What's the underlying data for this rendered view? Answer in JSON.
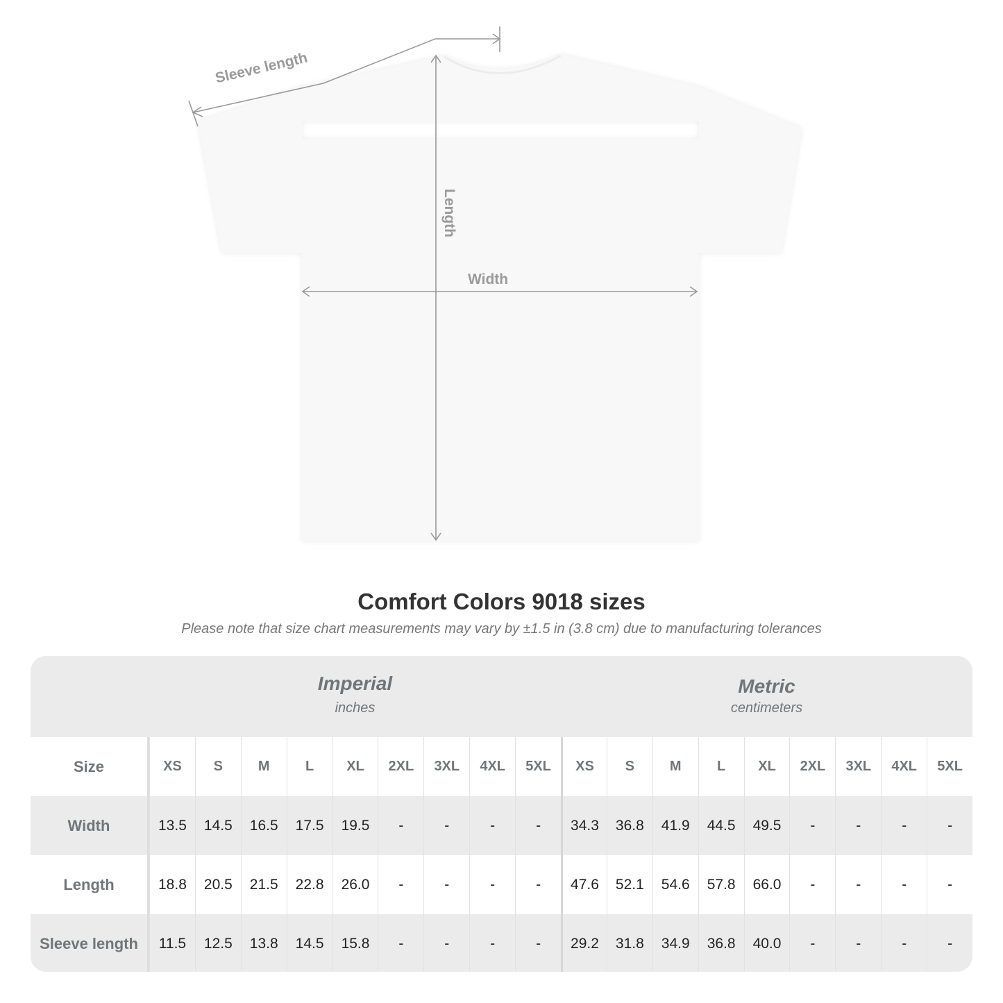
{
  "diagram": {
    "labels": {
      "sleeve": "Sleeve length",
      "length": "Length",
      "width": "Width"
    }
  },
  "title": "Comfort Colors 9018 sizes",
  "note": "Please note that size chart measurements may vary by ±1.5 in (3.8 cm) due to manufacturing tolerances",
  "table": {
    "imperial": {
      "title": "Imperial",
      "unit": "inches"
    },
    "metric": {
      "title": "Metric",
      "unit": "centimeters"
    },
    "size_label": "Size",
    "sizes": [
      "XS",
      "S",
      "M",
      "L",
      "XL",
      "2XL",
      "3XL",
      "4XL",
      "5XL"
    ],
    "rows": [
      {
        "label": "Width",
        "imperial": [
          "13.5",
          "14.5",
          "16.5",
          "17.5",
          "19.5",
          "-",
          "-",
          "-",
          "-"
        ],
        "metric": [
          "34.3",
          "36.8",
          "41.9",
          "44.5",
          "49.5",
          "-",
          "-",
          "-",
          "-"
        ]
      },
      {
        "label": "Length",
        "imperial": [
          "18.8",
          "20.5",
          "21.5",
          "22.8",
          "26.0",
          "-",
          "-",
          "-",
          "-"
        ],
        "metric": [
          "47.6",
          "52.1",
          "54.6",
          "57.8",
          "66.0",
          "-",
          "-",
          "-",
          "-"
        ]
      },
      {
        "label": "Sleeve length",
        "imperial": [
          "11.5",
          "12.5",
          "13.8",
          "14.5",
          "15.8",
          "-",
          "-",
          "-",
          "-"
        ],
        "metric": [
          "29.2",
          "31.8",
          "34.9",
          "36.8",
          "40.0",
          "-",
          "-",
          "-",
          "-"
        ]
      }
    ]
  },
  "colors": {
    "header_bg": "#ebebeb",
    "header_text": "#6f767a",
    "annotation": "#9a9a9a",
    "shirt": "#f7f7f7"
  }
}
